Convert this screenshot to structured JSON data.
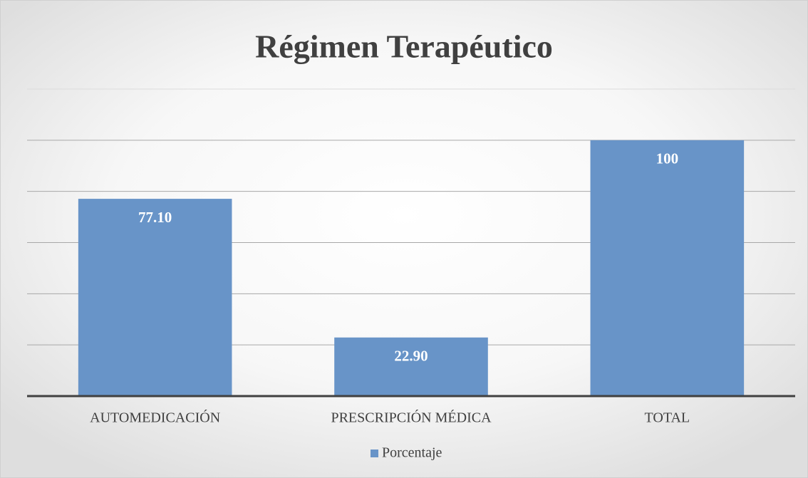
{
  "chart_data": {
    "type": "bar",
    "title": "Régimen Terapéutico",
    "categories": [
      "AUTOMEDICACIÓN",
      "PRESCRIPCIÓN MÉDICA",
      "TOTAL"
    ],
    "series": [
      {
        "name": "Porcentaje",
        "color": "#6894c8",
        "values": [
          77.1,
          22.9,
          100
        ],
        "value_labels": [
          "77.10",
          "22.90",
          "100"
        ]
      }
    ],
    "ylim": [
      0,
      120
    ],
    "yticks": [
      0,
      20,
      40,
      60,
      80,
      100,
      120
    ],
    "grid": true,
    "legend": "bottom"
  }
}
